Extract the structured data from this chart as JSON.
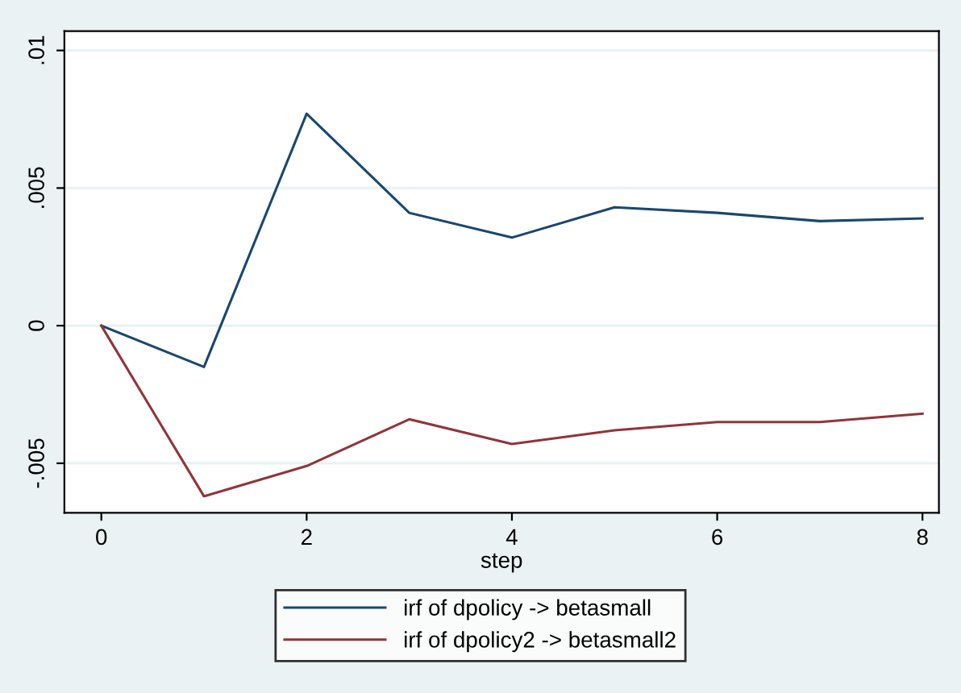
{
  "chart_data": {
    "type": "line",
    "xlabel": "step",
    "x": [
      0,
      1,
      2,
      3,
      4,
      5,
      6,
      7,
      8
    ],
    "series": [
      {
        "name": "irf of dpolicy -> betasmall",
        "color": "#1a476f",
        "values": [
          0,
          -0.0015,
          0.0077,
          0.0041,
          0.0032,
          0.0043,
          0.0041,
          0.0038,
          0.0039
        ]
      },
      {
        "name": "irf of dpolicy2 -> betasmall2",
        "color": "#90353b",
        "values": [
          0,
          -0.0062,
          -0.0051,
          -0.0034,
          -0.0043,
          -0.0038,
          -0.0035,
          -0.0035,
          -0.0032
        ]
      }
    ],
    "xlim": [
      -0.36,
      8.16
    ],
    "xticks": [
      0,
      2,
      4,
      6,
      8
    ],
    "ylim": [
      -0.0068,
      0.0107
    ],
    "yticks": [
      {
        "value": -0.005,
        "label": "-.005"
      },
      {
        "value": 0,
        "label": "0"
      },
      {
        "value": 0.005,
        "label": ".005"
      },
      {
        "value": 0.01,
        "label": ".01"
      }
    ],
    "grid": "y",
    "legend": "bottom",
    "marker": "none",
    "line_style": "solid"
  }
}
